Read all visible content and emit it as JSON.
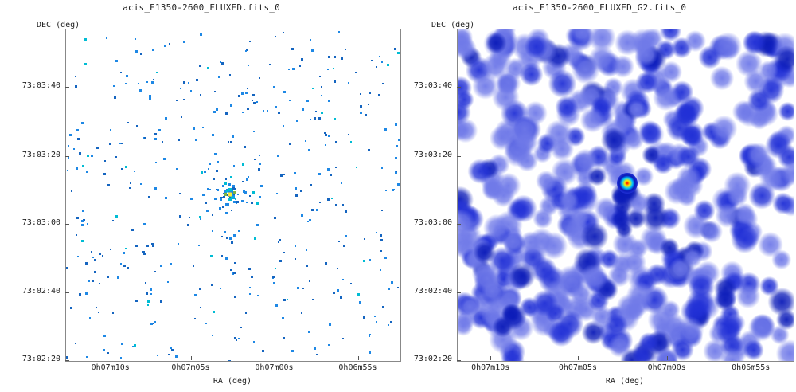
{
  "chart_data": [
    {
      "type": "heatmap",
      "title": "acis_E1350-2600_FLUXED.fits_0",
      "xlabel": "RA (deg)",
      "ylabel": "DEC (deg)",
      "x_ticks": [
        "0h07m10s",
        "0h07m05s",
        "0h07m00s",
        "0h06m55s"
      ],
      "y_ticks": [
        "73:03:40",
        "73:03:20",
        "73:03:00",
        "73:02:40",
        "73:02:20"
      ],
      "colormap": [
        "#ffffff",
        "#1565c0",
        "#1e88e5",
        "#00bcd4",
        "#7cb342",
        "#ffeb3b",
        "#ff1744"
      ],
      "source": {
        "x_frac": 0.5,
        "y_frac": 0.5
      },
      "smoothing": "none"
    },
    {
      "type": "heatmap",
      "title": "acis_E1350-2600_FLUXED_G2.fits_0",
      "xlabel": "RA (deg)",
      "ylabel": "DEC (deg)",
      "x_ticks": [
        "0h07m10s",
        "0h07m05s",
        "0h07m00s",
        "0h06m55s"
      ],
      "y_ticks": [
        "73:03:40",
        "73:03:20",
        "73:03:00",
        "73:02:40",
        "73:02:20"
      ],
      "colormap": [
        "#ffffff",
        "#6f79e8",
        "#2130d6",
        "#0a1ab8",
        "#00c8ff",
        "#ffee00",
        "#ff0000"
      ],
      "source": {
        "x_frac": 0.5,
        "y_frac": 0.5
      },
      "smoothing": "gaussian"
    }
  ]
}
